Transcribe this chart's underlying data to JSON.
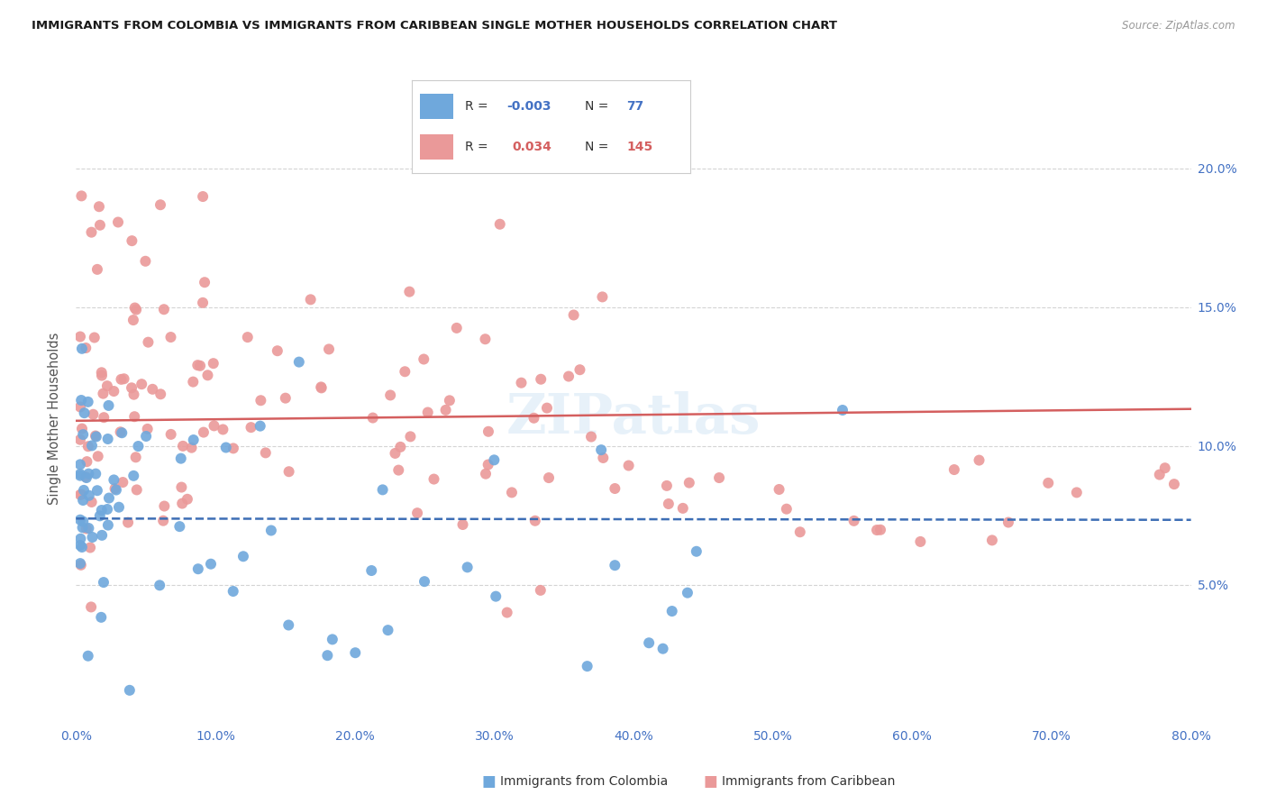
{
  "title": "IMMIGRANTS FROM COLOMBIA VS IMMIGRANTS FROM CARIBBEAN SINGLE MOTHER HOUSEHOLDS CORRELATION CHART",
  "source": "Source: ZipAtlas.com",
  "ylabel": "Single Mother Households",
  "xlim": [
    0.0,
    0.8
  ],
  "ylim": [
    0.0,
    0.22
  ],
  "colombia_R": -0.003,
  "colombia_N": 77,
  "caribbean_R": 0.034,
  "caribbean_N": 145,
  "colombia_color": "#6fa8dc",
  "caribbean_color": "#ea9999",
  "colombia_line_color": "#3d6eb5",
  "caribbean_line_color": "#d45f5f",
  "background_color": "#ffffff",
  "grid_color": "#d0d0d0",
  "axis_label_color": "#4472c4",
  "watermark_color": "#d0e4f5",
  "watermark_alpha": 0.5,
  "x_tick_vals": [
    0.0,
    0.1,
    0.2,
    0.3,
    0.4,
    0.5,
    0.6,
    0.7,
    0.8
  ],
  "y_tick_vals": [
    0.05,
    0.1,
    0.15,
    0.2
  ],
  "legend_R1_color": "#4472c4",
  "legend_R2_color": "#d45f5f",
  "legend_N1_color": "#4472c4",
  "legend_N2_color": "#d45f5f"
}
